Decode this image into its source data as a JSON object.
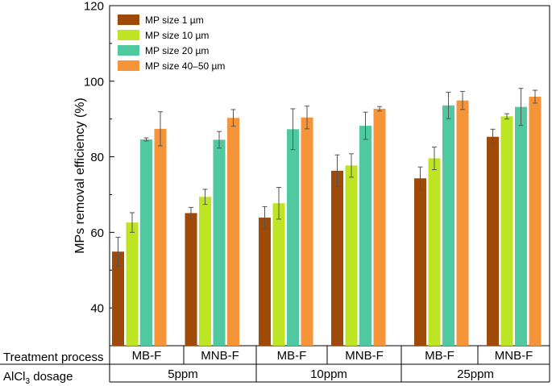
{
  "chart_data": {
    "type": "bar",
    "title": "",
    "ylabel": "MPs removal efficiency (%)",
    "xlabel": "",
    "ylim": [
      30,
      120
    ],
    "yticks": [
      40,
      60,
      80,
      100,
      120
    ],
    "grid": false,
    "legend_position": "top-left",
    "categories": [
      "MB-F",
      "MNB-F",
      "MB-F",
      "MNB-F",
      "MB-F",
      "MNB-F"
    ],
    "dosage_groups": [
      "5ppm",
      "10ppm",
      "25ppm"
    ],
    "series": [
      {
        "name": "MP size 1 µm",
        "color": "#a04a0a",
        "values": [
          54.9,
          65.1,
          63.9,
          76.3,
          74.3,
          85.3
        ],
        "errors": [
          3.8,
          1.5,
          2.9,
          4.2,
          3.0,
          2.0
        ]
      },
      {
        "name": "MP size 10 µm",
        "color": "#bde523",
        "values": [
          62.6,
          69.4,
          67.7,
          77.7,
          79.6,
          90.7
        ],
        "errors": [
          2.6,
          2.0,
          4.2,
          3.1,
          3.0,
          0.7
        ]
      },
      {
        "name": "MP size 20 µm",
        "color": "#50c8a0",
        "values": [
          84.6,
          84.5,
          87.3,
          88.2,
          93.6,
          93.2
        ],
        "errors": [
          0.4,
          2.2,
          5.4,
          3.6,
          3.5,
          4.9
        ]
      },
      {
        "name": "MP size 40–50 µm",
        "color": "#f6943a",
        "values": [
          87.4,
          90.3,
          90.4,
          92.7,
          94.9,
          95.9
        ],
        "errors": [
          4.5,
          2.2,
          3.0,
          0.6,
          2.4,
          1.7
        ]
      }
    ]
  },
  "rows": {
    "treatment_label": "Treatment process",
    "dosage_label_prefix": "AlCl",
    "dosage_label_sub": "3",
    "dosage_label_suffix": " dosage"
  }
}
